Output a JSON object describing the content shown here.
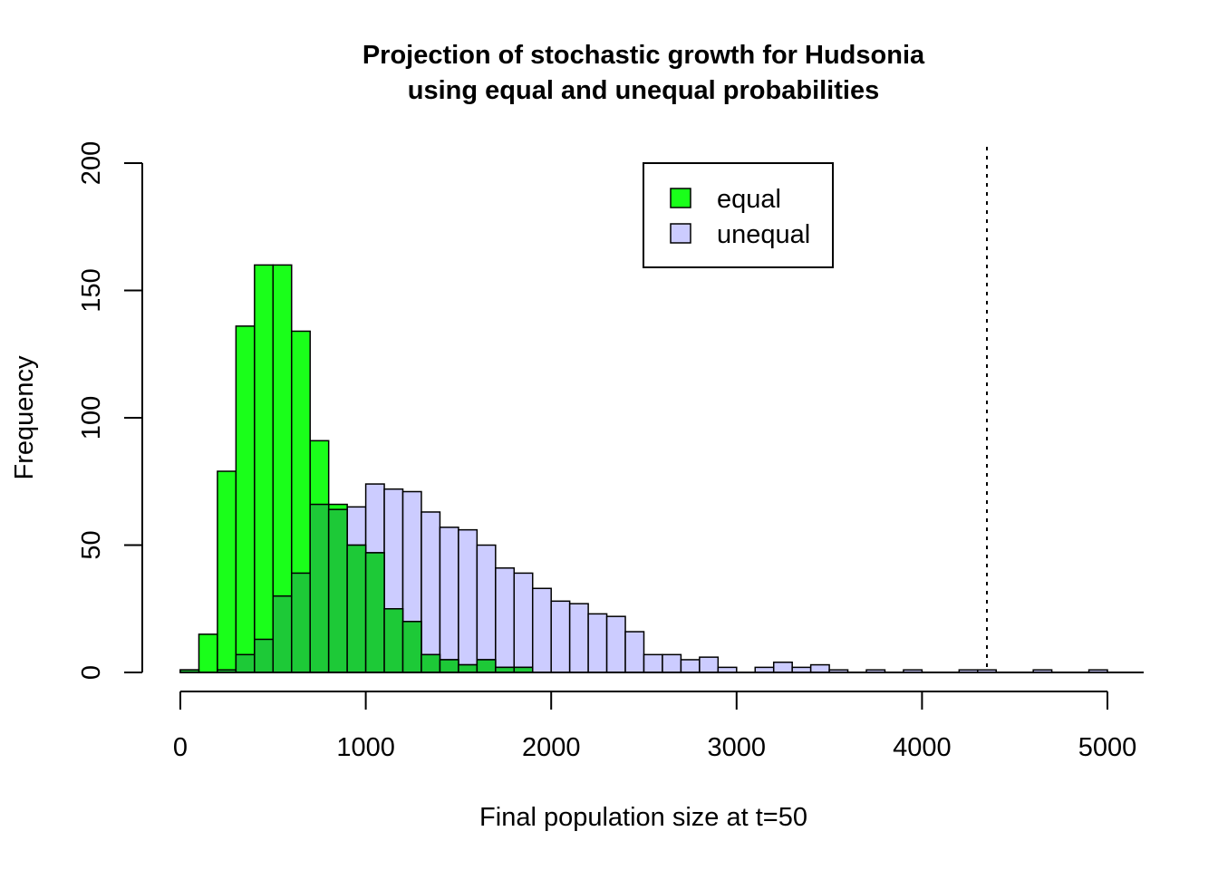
{
  "chart_data": {
    "type": "bar",
    "title": "Projection of stochastic growth for Hudsonia",
    "subtitle": "using equal and unequal probabilities",
    "xlabel": "Final population size at t=50",
    "ylabel": "Frequency",
    "xlim": [
      0,
      5200
    ],
    "ylim": [
      0,
      200
    ],
    "x_ticks": [
      0,
      1000,
      2000,
      3000,
      4000,
      5000
    ],
    "x_tick_labels": [
      "0",
      "1000",
      "2000",
      "3000",
      "4000",
      "5000"
    ],
    "y_ticks": [
      0,
      50,
      100,
      150,
      200
    ],
    "y_tick_labels": [
      "0",
      "50",
      "100",
      "150",
      "200"
    ],
    "bin_width": 100,
    "bin_starts": [
      0,
      100,
      200,
      300,
      400,
      500,
      600,
      700,
      800,
      900,
      1000,
      1100,
      1200,
      1300,
      1400,
      1500,
      1600,
      1700,
      1800,
      1900,
      2000,
      2100,
      2200,
      2300,
      2400,
      2500,
      2600,
      2700,
      2800,
      2900,
      3000,
      3100,
      3200,
      3300,
      3400,
      3500,
      3600,
      3700,
      3800,
      3900,
      4000,
      4100,
      4200,
      4300,
      4400,
      4500,
      4600,
      4700,
      4800,
      4900
    ],
    "series": [
      {
        "name": "equal",
        "color": "#1aff1a",
        "values": [
          1,
          15,
          79,
          136,
          160,
          160,
          134,
          91,
          66,
          50,
          47,
          25,
          20,
          7,
          5,
          3,
          5,
          2,
          2,
          0,
          0,
          0,
          0,
          0,
          0,
          0,
          0,
          0,
          0,
          0,
          0,
          0,
          0,
          0,
          0,
          0,
          0,
          0,
          0,
          0,
          0,
          0,
          0,
          0,
          0,
          0,
          0,
          0,
          0,
          0
        ]
      },
      {
        "name": "unequal",
        "color": "#ccccff",
        "values": [
          1,
          0,
          1,
          7,
          13,
          30,
          39,
          66,
          64,
          65,
          74,
          72,
          71,
          63,
          57,
          56,
          50,
          41,
          39,
          33,
          28,
          27,
          23,
          22,
          16,
          7,
          7,
          5,
          6,
          2,
          0,
          2,
          4,
          2,
          3,
          1,
          0,
          1,
          0,
          1,
          0,
          0,
          1,
          1,
          0,
          0,
          1,
          0,
          0,
          1
        ]
      }
    ],
    "overlap_color": "#1dc937",
    "vline": {
      "x": 4350,
      "style": "dotted"
    },
    "legend": {
      "position": "top-right",
      "entries": [
        "equal",
        "unequal"
      ]
    },
    "grid": false
  }
}
